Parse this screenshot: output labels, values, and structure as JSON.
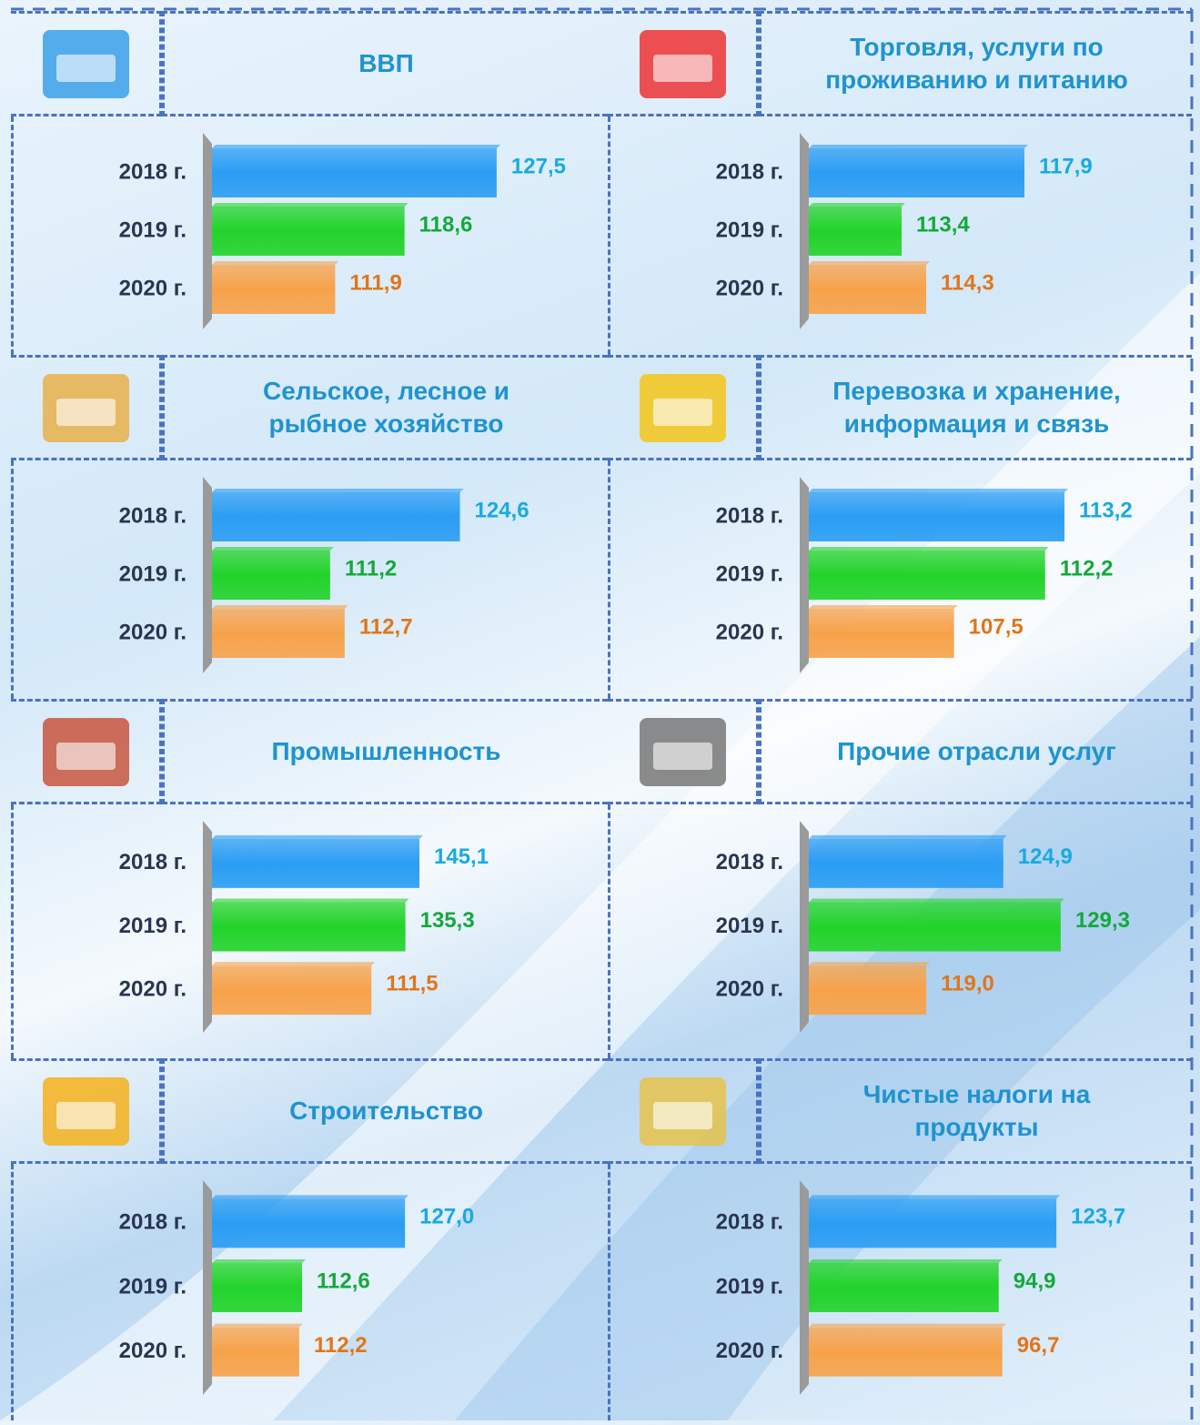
{
  "chart_data": [
    {
      "type": "bar",
      "title": "ВВП",
      "categories": [
        "2018 г.",
        "2019 г.",
        "2020 г."
      ],
      "values": [
        127.5,
        118.6,
        111.9
      ],
      "value_labels": [
        "127,5",
        "118,6",
        "111,9"
      ],
      "xlim": [
        100,
        129
      ],
      "colors": [
        "#2a9df4",
        "#22d32a",
        "#f7a24a"
      ],
      "label_colors": [
        "#19a9e3",
        "#14a83c",
        "#e0761a"
      ]
    },
    {
      "type": "bar",
      "title": "Торговля, услуги по проживанию и питанию",
      "categories": [
        "2018 г.",
        "2019 г.",
        "2020 г."
      ],
      "values": [
        117.9,
        113.4,
        114.3
      ],
      "value_labels": [
        "117,9",
        "113,4",
        "114,3"
      ],
      "xlim": [
        110,
        121
      ],
      "colors": [
        "#2a9df4",
        "#22d32a",
        "#f7a24a"
      ],
      "label_colors": [
        "#19a9e3",
        "#14a83c",
        "#e0761a"
      ]
    },
    {
      "type": "bar",
      "title": "Сельское, лесное и рыбное хозяйство",
      "categories": [
        "2018 г.",
        "2019 г.",
        "2020 г."
      ],
      "values": [
        124.6,
        111.2,
        112.7
      ],
      "value_labels": [
        "124,6",
        "111,2",
        "112,7"
      ],
      "xlim": [
        99,
        130
      ],
      "colors": [
        "#2a9df4",
        "#22d32a",
        "#f7a24a"
      ],
      "label_colors": [
        "#19a9e3",
        "#14a83c",
        "#e0761a"
      ]
    },
    {
      "type": "bar",
      "title": "Перевозка и хранение, информация и связь",
      "categories": [
        "2018 г.",
        "2019 г.",
        "2020 г."
      ],
      "values": [
        113.2,
        112.2,
        107.5
      ],
      "value_labels": [
        "113,2",
        "112,2",
        "107,5"
      ],
      "xlim": [
        100,
        115.5
      ],
      "colors": [
        "#2a9df4",
        "#22d32a",
        "#f7a24a"
      ],
      "label_colors": [
        "#19a9e3",
        "#14a83c",
        "#e0761a"
      ]
    },
    {
      "type": "bar",
      "title": "Промышленность",
      "categories": [
        "2018 г.",
        "2019 г.",
        "2020 г."
      ],
      "values": [
        145.1,
        135.3,
        111.5
      ],
      "value_labels": [
        "145,1",
        "135,3",
        "111,5"
      ],
      "xlim": [
        0,
        210
      ],
      "colors": [
        "#2a9df4",
        "#22d32a",
        "#f7a24a"
      ],
      "label_colors": [
        "#19a9e3",
        "#14a83c",
        "#e0761a"
      ]
    },
    {
      "type": "bar",
      "title": "Прочие отрасли услуг",
      "categories": [
        "2018 г.",
        "2019 г.",
        "2020 г."
      ],
      "values": [
        124.9,
        129.3,
        119.0
      ],
      "value_labels": [
        "124,9",
        "129,3",
        "119,0"
      ],
      "xlim": [
        110,
        133
      ],
      "colors": [
        "#2a9df4",
        "#22d32a",
        "#f7a24a"
      ],
      "label_colors": [
        "#19a9e3",
        "#14a83c",
        "#e0761a"
      ]
    },
    {
      "type": "bar",
      "title": "Строительство",
      "categories": [
        "2018 г.",
        "2019 г.",
        "2020 г."
      ],
      "values": [
        127.0,
        112.6,
        112.2
      ],
      "value_labels": [
        "127,0",
        "112,6",
        "112,2"
      ],
      "xlim": [
        100,
        142
      ],
      "colors": [
        "#2a9df4",
        "#22d32a",
        "#f7a24a"
      ],
      "label_colors": [
        "#19a9e3",
        "#14a83c",
        "#e0761a"
      ]
    },
    {
      "type": "bar",
      "title": "Чистые налоги на продукты",
      "categories": [
        "2018 г.",
        "2019 г.",
        "2020 г."
      ],
      "values": [
        123.7,
        94.9,
        96.7
      ],
      "value_labels": [
        "123,7",
        "94,9",
        "96,7"
      ],
      "xlim": [
        0,
        150
      ],
      "colors": [
        "#2a9df4",
        "#22d32a",
        "#f7a24a"
      ],
      "label_colors": [
        "#19a9e3",
        "#14a83c",
        "#e0761a"
      ]
    }
  ]
}
